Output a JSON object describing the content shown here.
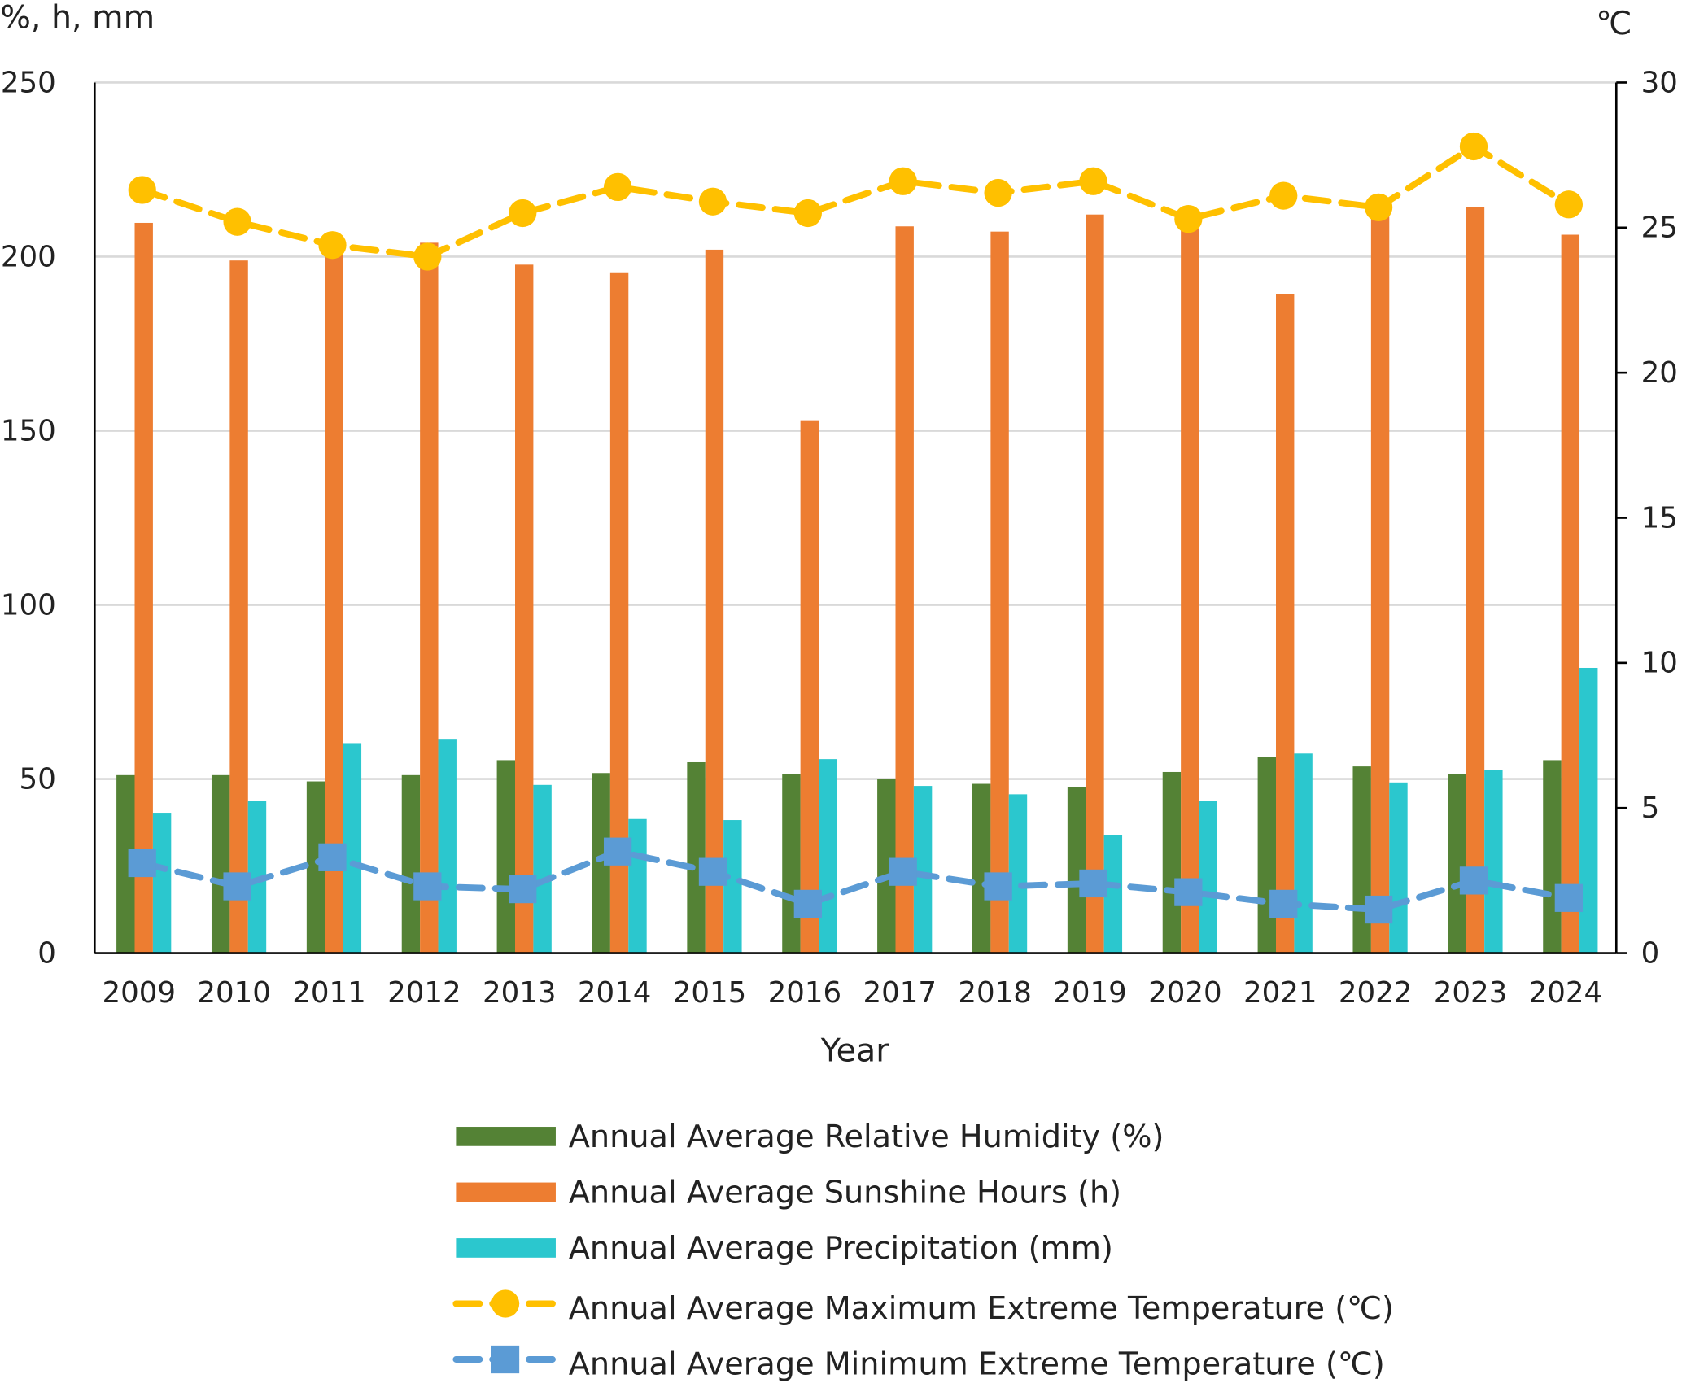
{
  "chart_data": {
    "type": "bar",
    "title": "",
    "xlabel": "Year",
    "ylabel_left": "%, h, mm",
    "ylabel_right": "℃",
    "ylim_left": [
      0,
      250
    ],
    "ylim_right": [
      0,
      30
    ],
    "yticks_left": [
      "0",
      "50",
      "100",
      "150",
      "200",
      "250"
    ],
    "yticks_right": [
      "0",
      "5",
      "10",
      "15",
      "20",
      "25",
      "30"
    ],
    "grid": true,
    "legend_position": "bottom",
    "categories": [
      "2009",
      "2010",
      "2011",
      "2012",
      "2013",
      "2014",
      "2015",
      "2016",
      "2017",
      "2018",
      "2019",
      "2020",
      "2021",
      "2022",
      "2023",
      "2024"
    ],
    "series": [
      {
        "name": "Annual Average Relative Humidity (%)",
        "kind": "bar",
        "axis": "left",
        "color": "#548235",
        "values": [
          51.1,
          51.1,
          49.3,
          51.1,
          55.4,
          51.7,
          54.8,
          51.4,
          49.9,
          48.6,
          47.7,
          52.0,
          56.3,
          53.6,
          51.4,
          55.4
        ]
      },
      {
        "name": "Annual Average Sunshine Hours (h)",
        "kind": "bar",
        "axis": "left",
        "color": "#ED7D31",
        "values": [
          209.7,
          198.9,
          206,
          204,
          197.7,
          195.5,
          202,
          153,
          208.7,
          207.2,
          212.1,
          208,
          189.3,
          212,
          214.3,
          206.3
        ]
      },
      {
        "name": "Annual Average Precipitation (mm)",
        "kind": "bar",
        "axis": "left",
        "color": "#2BC7CE",
        "values": [
          40.3,
          43.7,
          60.3,
          61.3,
          48.3,
          38.5,
          38.2,
          55.7,
          48.0,
          45.6,
          33.9,
          43.7,
          57.3,
          49.0,
          52.6,
          81.9
        ]
      },
      {
        "name": "Annual Average Maximum Extreme Temperature (℃)",
        "kind": "line",
        "marker": "circle",
        "axis": "right",
        "color": "#FFC000",
        "values": [
          26.3,
          25.2,
          24.4,
          24.0,
          25.5,
          26.4,
          25.9,
          25.5,
          26.6,
          26.2,
          26.6,
          25.3,
          26.1,
          25.7,
          27.8,
          25.8
        ]
      },
      {
        "name": "Annual Average Minimum Extreme Temperature (℃)",
        "kind": "line",
        "marker": "square",
        "axis": "right",
        "color": "#5B9BD5",
        "values": [
          3.1,
          2.3,
          3.3,
          2.3,
          2.2,
          3.5,
          2.8,
          1.7,
          2.8,
          2.3,
          2.4,
          2.1,
          1.7,
          1.5,
          2.5,
          1.9
        ]
      }
    ]
  }
}
